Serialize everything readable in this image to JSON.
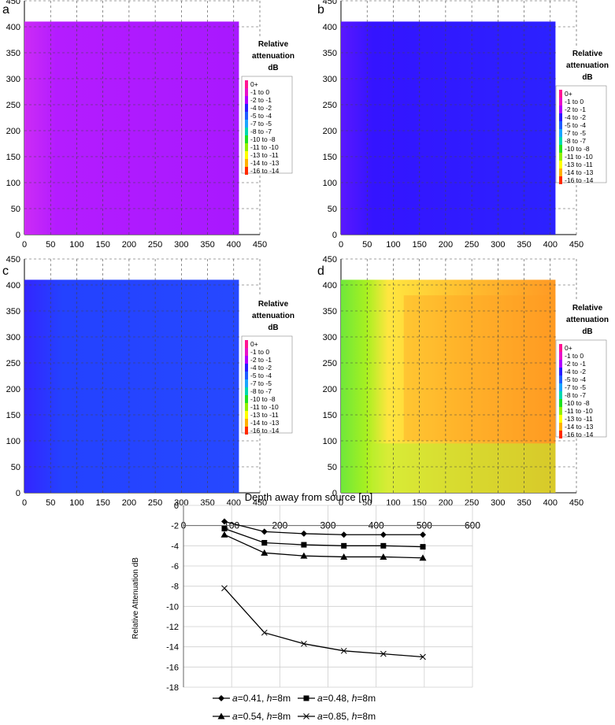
{
  "legend": {
    "title_line1": "Relative",
    "title_line2": "attenuation",
    "title_line3": "dB",
    "items": [
      {
        "label": "0+",
        "color": "#ff1493"
      },
      {
        "label": "-1 to 0",
        "color": "#e812c8"
      },
      {
        "label": "-2 to -1",
        "color": "#b000ff"
      },
      {
        "label": "-4 to -2",
        "color": "#2a1cff"
      },
      {
        "label": "-5 to -4",
        "color": "#1f5cff"
      },
      {
        "label": "-7 to -5",
        "color": "#1aa5ff"
      },
      {
        "label": "-8 to -7",
        "color": "#00d8b0"
      },
      {
        "label": "-10 to -8",
        "color": "#20e020"
      },
      {
        "label": "-11 to -10",
        "color": "#90f000"
      },
      {
        "label": "-13 to -11",
        "color": "#ffff00"
      },
      {
        "label": "-14 to -13",
        "color": "#ffb000"
      },
      {
        "label": "-16 to -14",
        "color": "#ff2a00"
      }
    ]
  },
  "chart_data": [
    {
      "panel": "a",
      "type": "heatmap",
      "x_ticks": [
        0,
        50,
        100,
        150,
        200,
        250,
        300,
        350,
        400,
        450
      ],
      "y_ticks": [
        0,
        50,
        100,
        150,
        200,
        250,
        300,
        350,
        400,
        450
      ],
      "xlim": [
        0,
        450
      ],
      "ylim": [
        0,
        450
      ],
      "field_extent": [
        0,
        410
      ],
      "dominant_level": "-2 to -1",
      "base_color": "#b41cff"
    },
    {
      "panel": "b",
      "type": "heatmap",
      "x_ticks": [
        0,
        50,
        100,
        150,
        200,
        250,
        300,
        350,
        400,
        450
      ],
      "y_ticks": [
        0,
        50,
        100,
        150,
        200,
        250,
        300,
        350,
        400,
        450
      ],
      "xlim": [
        0,
        450
      ],
      "ylim": [
        0,
        450
      ],
      "field_extent": [
        0,
        410
      ],
      "dominant_level": "-4 to -2",
      "base_color": "#3414ff"
    },
    {
      "panel": "c",
      "type": "heatmap",
      "x_ticks": [
        0,
        50,
        100,
        150,
        200,
        250,
        300,
        350,
        400,
        450
      ],
      "y_ticks": [
        0,
        50,
        100,
        150,
        200,
        250,
        300,
        350,
        400,
        450
      ],
      "xlim": [
        0,
        450
      ],
      "ylim": [
        0,
        450
      ],
      "field_extent": [
        0,
        410
      ],
      "dominant_level": "-5 to -4",
      "base_color": "#2442ff"
    },
    {
      "panel": "d",
      "type": "heatmap",
      "x_ticks": [
        0,
        50,
        100,
        150,
        200,
        250,
        300,
        350,
        400,
        450
      ],
      "y_ticks": [
        0,
        50,
        100,
        150,
        200,
        250,
        300,
        350,
        400,
        450
      ],
      "xlim": [
        0,
        450
      ],
      "ylim": [
        0,
        450
      ],
      "field_extent": [
        0,
        410
      ],
      "dominant_level": "-13 to -11",
      "base_color": "#ffd21c"
    },
    {
      "panel": "line",
      "type": "line",
      "title": "Depth away from source [m]",
      "ylabel": "Relative  Attenuation dB",
      "x_ticks": [
        0,
        100,
        200,
        300,
        400,
        500,
        600
      ],
      "y_ticks": [
        0,
        -2,
        -4,
        -6,
        -8,
        -10,
        -12,
        -14,
        -16,
        -18
      ],
      "xlim": [
        0,
        600
      ],
      "ylim": [
        -18,
        0
      ],
      "x": [
        85,
        168,
        250,
        333,
        415,
        497
      ],
      "series": [
        {
          "name_a": "a",
          "name_a_val": "=0.41, ",
          "name_h": "h",
          "name_h_val": "=8m",
          "marker": "diamond",
          "values": [
            -1.6,
            -2.6,
            -2.8,
            -2.9,
            -2.9,
            -2.9
          ]
        },
        {
          "name_a": "a",
          "name_a_val": "=0.48, ",
          "name_h": "h",
          "name_h_val": "=8m",
          "marker": "square",
          "values": [
            -2.3,
            -3.7,
            -3.9,
            -4.0,
            -4.0,
            -4.1
          ]
        },
        {
          "name_a": "a",
          "name_a_val": "=0.54, ",
          "name_h": "h",
          "name_h_val": "=8m",
          "marker": "triangle",
          "values": [
            -2.9,
            -4.7,
            -5.0,
            -5.1,
            -5.1,
            -5.2
          ]
        },
        {
          "name_a": "a",
          "name_a_val": "=0.85, ",
          "name_h": "h",
          "name_h_val": "=8m",
          "marker": "x",
          "values": [
            -8.2,
            -12.6,
            -13.7,
            -14.4,
            -14.7,
            -15.0
          ]
        }
      ]
    }
  ]
}
